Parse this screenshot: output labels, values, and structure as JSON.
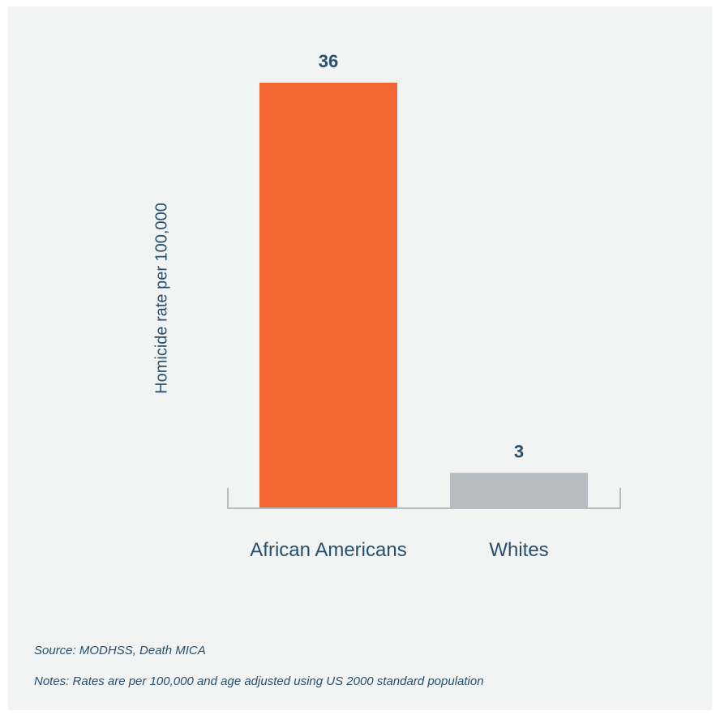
{
  "chart_data": {
    "type": "bar",
    "categories": [
      "African Americans",
      "Whites"
    ],
    "values": [
      36,
      3
    ],
    "data_labels": [
      "36",
      "3"
    ],
    "colors": [
      "#f26631",
      "#b5bbbf"
    ],
    "ylabel": "Homicide rate per 100,000",
    "ylim": [
      0,
      36
    ],
    "grid": false,
    "legend": "none"
  },
  "footer": {
    "source": "Source: MODHSS, Death MICA",
    "notes": "Notes: Rates are per 100,000 and age adjusted using US 2000 standard population"
  },
  "theme": {
    "panel_bg": "#f2f3f3",
    "text_color": "#274f6e",
    "axis_color": "#b5bbbf"
  }
}
